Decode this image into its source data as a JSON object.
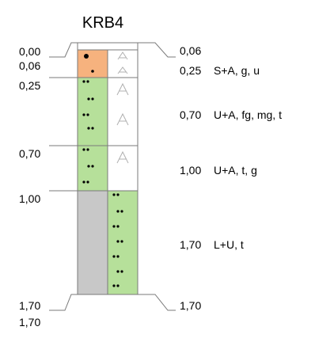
{
  "title": "KRB4",
  "colors": {
    "orange": "#f6b27e",
    "green": "#b6e09a",
    "gray": "#c8c8c8",
    "white": "#ffffff",
    "line": "#7a7a7a"
  },
  "left_labels": {
    "top": "0,00",
    "l1": "0,06",
    "l2": "0,25",
    "l3": "0,70",
    "l4": "1,00",
    "bottom_a": "1,70",
    "bottom_b": "1,70"
  },
  "right_labels": {
    "top": "0,06",
    "d1": "0,25",
    "d2": "0,70",
    "d3": "1,00",
    "d4": "1,70",
    "bottom": "1,70"
  },
  "descriptions": {
    "d1": "S+A, g, u",
    "d2": "U+A, fg, mg, t",
    "d3": "U+A, t, g",
    "d4": "L+U, t"
  }
}
